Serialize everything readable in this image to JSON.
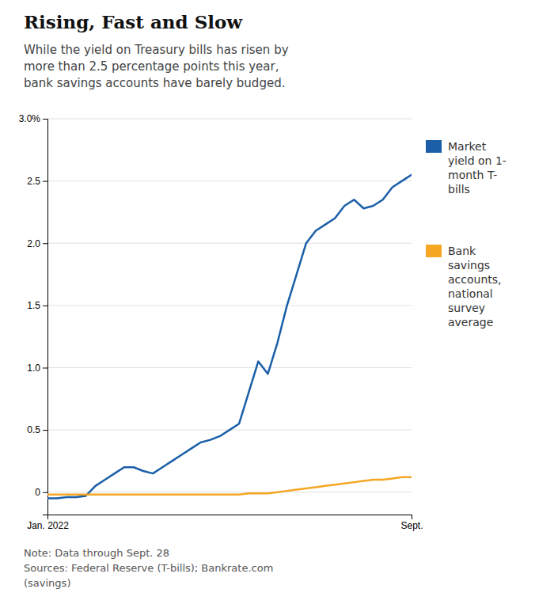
{
  "chart_data": {
    "type": "line",
    "title": "Rising, Fast and Slow",
    "subtitle": "While the yield on Treasury bills has risen by\nmore than 2.5 percentage points this year,\nbank savings accounts have barely budged.",
    "note": "Note: Data through Sept. 28\nSources: Federal Reserve (T-bills); Bankrate.com\n(savings)",
    "x": [
      0,
      1,
      2,
      3,
      4,
      5,
      6,
      7,
      8,
      9,
      10,
      11,
      12,
      13,
      14,
      15,
      16,
      17,
      18,
      19,
      20,
      21,
      22,
      23,
      24,
      25,
      26,
      27,
      28,
      29,
      30,
      31,
      32,
      33,
      34,
      35,
      36,
      37,
      38
    ],
    "xlim": [
      0,
      38
    ],
    "xticks": [
      {
        "value": 0,
        "label": "Jan. 2022"
      },
      {
        "value": 38,
        "label": "Sept."
      }
    ],
    "ylim": [
      -0.18,
      3.0
    ],
    "yticks": [
      0,
      0.5,
      {
        "value": 1.0,
        "label": "1.0"
      },
      1.5,
      {
        "value": 2.0,
        "label": "2.0"
      },
      2.5,
      {
        "value": 3.0,
        "label": "3.0%"
      }
    ],
    "grid": true,
    "legend": "right",
    "series": [
      {
        "name": "Market\nyield on 1-\nmonth T-\nbills",
        "color": "#1a5fa8",
        "values": [
          -0.05,
          -0.05,
          -0.04,
          -0.04,
          -0.03,
          0.05,
          0.1,
          0.15,
          0.2,
          0.2,
          0.17,
          0.15,
          0.2,
          0.25,
          0.3,
          0.35,
          0.4,
          0.42,
          0.45,
          0.5,
          0.55,
          0.8,
          1.05,
          0.95,
          1.2,
          1.5,
          1.75,
          2.0,
          2.1,
          2.15,
          2.2,
          2.3,
          2.35,
          2.28,
          2.3,
          2.35,
          2.45,
          2.5,
          2.55
        ]
      },
      {
        "name": "Bank\nsavings\naccounts,\nnational\nsurvey\naverage",
        "color": "#f5a623",
        "values": [
          -0.02,
          -0.02,
          -0.02,
          -0.02,
          -0.02,
          -0.02,
          -0.02,
          -0.02,
          -0.02,
          -0.02,
          -0.02,
          -0.02,
          -0.02,
          -0.02,
          -0.02,
          -0.02,
          -0.02,
          -0.02,
          -0.02,
          -0.02,
          -0.02,
          -0.01,
          -0.01,
          -0.01,
          0.0,
          0.01,
          0.02,
          0.03,
          0.04,
          0.05,
          0.06,
          0.07,
          0.08,
          0.09,
          0.1,
          0.1,
          0.11,
          0.12,
          0.12
        ]
      }
    ]
  }
}
